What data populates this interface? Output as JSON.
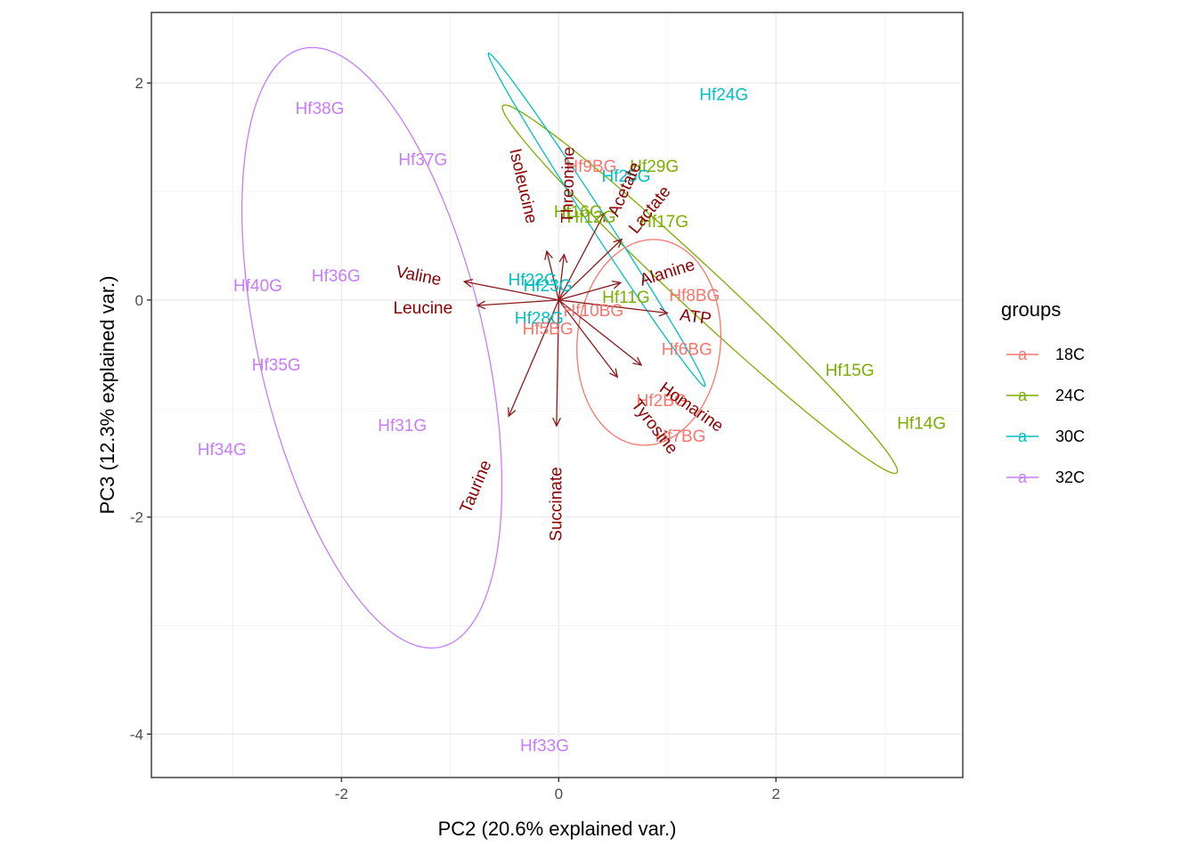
{
  "chart_data": {
    "type": "biplot",
    "xlabel": "PC2 (20.6% explained var.)",
    "ylabel": "PC3 (12.3% explained var.)",
    "xlim": [
      -3.75,
      3.72
    ],
    "ylim": [
      -4.4,
      2.65
    ],
    "xticks": [
      -2,
      0,
      2
    ],
    "yticks": [
      -4,
      -2,
      0,
      2
    ],
    "xtick_labels": [
      "-2",
      "0",
      "2"
    ],
    "ytick_labels": [
      "-4",
      "-2",
      "0",
      "2"
    ],
    "legend": {
      "title": "groups",
      "placement": "right",
      "key_glyph": "a",
      "entries": [
        {
          "group": "18C",
          "label": "18C",
          "color": "#F8766D"
        },
        {
          "group": "24C",
          "label": "24C",
          "color": "#7CAE00"
        },
        {
          "group": "30C",
          "label": "30C",
          "color": "#00BFC4"
        },
        {
          "group": "32C",
          "label": "32C",
          "color": "#C77CFF"
        }
      ]
    },
    "points": [
      {
        "label": "Hf24G",
        "group": "30C",
        "x": 1.52,
        "y": 1.9
      },
      {
        "label": "Hf38G",
        "group": "32C",
        "x": -2.2,
        "y": 1.77
      },
      {
        "label": "Hf37G",
        "group": "32C",
        "x": -1.25,
        "y": 1.3
      },
      {
        "label": "Hf9BG",
        "group": "18C",
        "x": 0.3,
        "y": 1.24
      },
      {
        "label": "Hf29G",
        "group": "24C",
        "x": 0.88,
        "y": 1.24
      },
      {
        "label": "Hf25G",
        "group": "30C",
        "x": 0.62,
        "y": 1.15
      },
      {
        "label": "Hf16G",
        "group": "24C",
        "x": 0.18,
        "y": 0.82
      },
      {
        "label": "Hf12G",
        "group": "24C",
        "x": 0.3,
        "y": 0.77
      },
      {
        "label": "Hf17G",
        "group": "24C",
        "x": 0.97,
        "y": 0.73
      },
      {
        "label": "Hf40G",
        "group": "32C",
        "x": -2.77,
        "y": 0.14
      },
      {
        "label": "Hf36G",
        "group": "32C",
        "x": -2.05,
        "y": 0.23
      },
      {
        "label": "Hf22G",
        "group": "30C",
        "x": -0.24,
        "y": 0.19
      },
      {
        "label": "Hf23G",
        "group": "30C",
        "x": -0.1,
        "y": 0.14
      },
      {
        "label": "Hf11G",
        "group": "24C",
        "x": 0.62,
        "y": 0.03
      },
      {
        "label": "Hf8BG",
        "group": "18C",
        "x": 1.25,
        "y": 0.05
      },
      {
        "label": "Hf10BG",
        "group": "18C",
        "x": 0.32,
        "y": -0.09
      },
      {
        "label": "Hf28G",
        "group": "30C",
        "x": -0.18,
        "y": -0.16
      },
      {
        "label": "Hf5BG",
        "group": "18C",
        "x": -0.1,
        "y": -0.26
      },
      {
        "label": "Hf6BG",
        "group": "18C",
        "x": 1.18,
        "y": -0.45
      },
      {
        "label": "Hf35G",
        "group": "32C",
        "x": -2.6,
        "y": -0.59
      },
      {
        "label": "Hf15G",
        "group": "24C",
        "x": 2.68,
        "y": -0.64
      },
      {
        "label": "Hf2BG",
        "group": "18C",
        "x": 0.95,
        "y": -0.92
      },
      {
        "label": "Hf31G",
        "group": "32C",
        "x": -1.44,
        "y": -1.15
      },
      {
        "label": "Hf14G",
        "group": "24C",
        "x": 3.34,
        "y": -1.13
      },
      {
        "label": "Hf7BG",
        "group": "18C",
        "x": 1.12,
        "y": -1.25
      },
      {
        "label": "Hf34G",
        "group": "32C",
        "x": -3.1,
        "y": -1.37
      },
      {
        "label": "Hf33G",
        "group": "32C",
        "x": -0.13,
        "y": -4.1
      }
    ],
    "ellipses": [
      {
        "group": "32C",
        "center": [
          -1.72,
          -0.44
        ],
        "rx": 1.04,
        "ry": 2.83,
        "rotation_deg": 13
      },
      {
        "group": "24C",
        "center": [
          1.3,
          0.1
        ],
        "rx": 2.48,
        "ry": 0.2,
        "rotation_deg": -43
      },
      {
        "group": "30C",
        "center": [
          0.35,
          0.74
        ],
        "rx": 1.83,
        "ry": 0.08,
        "rotation_deg": -57
      },
      {
        "group": "18C",
        "center": [
          0.83,
          -0.39
        ],
        "rx": 0.66,
        "ry": 0.95,
        "rotation_deg": -5
      }
    ],
    "vectors": [
      {
        "label": "Isoleucine",
        "x": -0.11,
        "y": 0.45,
        "label_x": -0.33,
        "label_y": 1.05,
        "label_angle_deg": 77
      },
      {
        "label": "Threonine",
        "x": 0.05,
        "y": 0.42,
        "label_x": 0.09,
        "label_y": 1.06,
        "label_angle_deg": -89
      },
      {
        "label": "Acetate",
        "x": 0.42,
        "y": 0.8,
        "label_x": 0.61,
        "label_y": 1.02,
        "label_angle_deg": -66
      },
      {
        "label": "Lactate",
        "x": 0.58,
        "y": 0.56,
        "label_x": 0.84,
        "label_y": 0.83,
        "label_angle_deg": -51
      },
      {
        "label": "Valine",
        "x": -0.87,
        "y": 0.17,
        "label_x": -1.29,
        "label_y": 0.22,
        "label_angle_deg": 11
      },
      {
        "label": "Leucine",
        "x": -0.75,
        "y": -0.05,
        "label_x": -1.25,
        "label_y": -0.08,
        "label_angle_deg": 0
      },
      {
        "label": "Alanine",
        "x": 0.57,
        "y": 0.16,
        "label_x": 1.0,
        "label_y": 0.25,
        "label_angle_deg": -17
      },
      {
        "label": "ATP",
        "x": 1.0,
        "y": -0.12,
        "label_x": 1.26,
        "label_y": -0.16,
        "label_angle_deg": 8
      },
      {
        "label": "Homarine",
        "x": 0.76,
        "y": -0.6,
        "label_x": 1.22,
        "label_y": -0.99,
        "label_angle_deg": 35
      },
      {
        "label": "Tyrosine",
        "x": 0.54,
        "y": -0.71,
        "label_x": 0.88,
        "label_y": -1.17,
        "label_angle_deg": 52
      },
      {
        "label": "Taurine",
        "x": -0.46,
        "y": -1.07,
        "label_x": -0.76,
        "label_y": -1.72,
        "label_angle_deg": -67
      },
      {
        "label": "Succinate",
        "x": -0.02,
        "y": -1.16,
        "label_x": -0.02,
        "label_y": -1.88,
        "label_angle_deg": -90
      }
    ]
  }
}
